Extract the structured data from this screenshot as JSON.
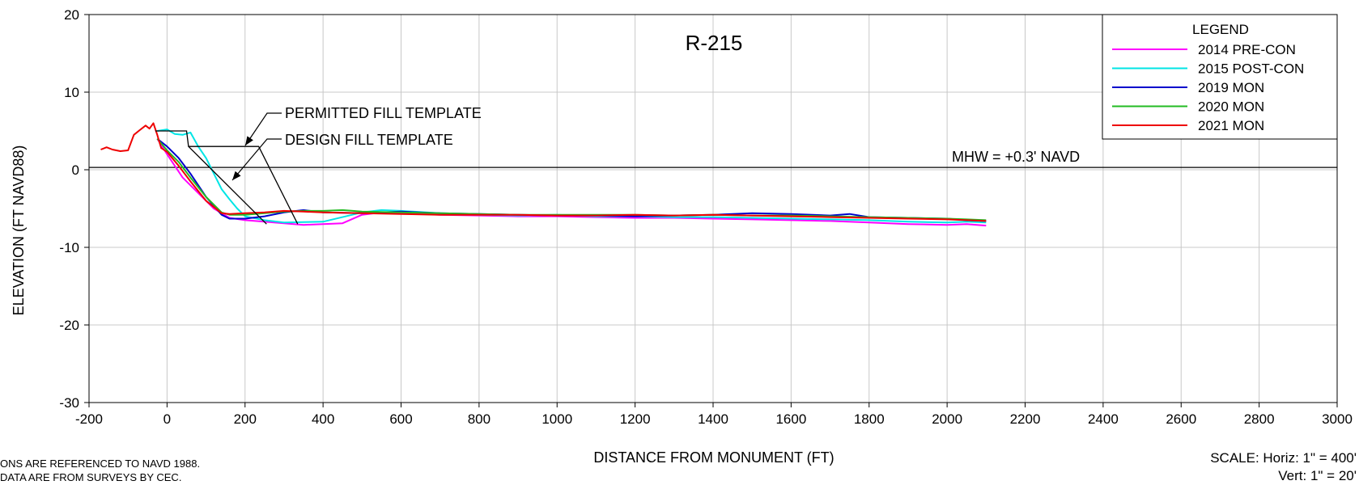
{
  "chart_data": {
    "type": "line",
    "title": "R-215",
    "xlabel": "DISTANCE FROM MONUMENT (FT)",
    "ylabel": "ELEVATION (FT NAVD88)",
    "xlim": [
      -200,
      3000
    ],
    "ylim": [
      -30,
      20
    ],
    "x_ticks": [
      -200,
      0,
      200,
      400,
      600,
      800,
      1000,
      1200,
      1400,
      1600,
      1800,
      2000,
      2200,
      2400,
      2600,
      2800,
      3000
    ],
    "y_ticks": [
      -30,
      -20,
      -10,
      0,
      10,
      20
    ],
    "grid": true,
    "legend_title": "LEGEND",
    "legend_position": "top-right",
    "mhw": {
      "value": 0.3,
      "label": "MHW = +0.3' NAVD"
    },
    "annotations": {
      "permitted": "PERMITTED FILL TEMPLATE",
      "design": "DESIGN FILL TEMPLATE"
    },
    "templates": {
      "permitted": {
        "x": [
          -30,
          50,
          55,
          235,
          335
        ],
        "y": [
          5,
          5,
          3,
          3,
          -7
        ]
      },
      "design": {
        "x": [
          55,
          255
        ],
        "y": [
          3,
          -7
        ]
      }
    },
    "series": [
      {
        "name": "2014 PRE-CON",
        "color": "#ff00ff",
        "x": [
          -25,
          0,
          40,
          80,
          120,
          160,
          200,
          250,
          300,
          350,
          400,
          450,
          500,
          550,
          600,
          700,
          800,
          900,
          1000,
          1100,
          1200,
          1300,
          1400,
          1500,
          1600,
          1700,
          1800,
          1900,
          2000,
          2050,
          2100
        ],
        "y": [
          4,
          2,
          -1,
          -3,
          -5,
          -6.2,
          -6.5,
          -6.7,
          -6.9,
          -7.1,
          -7.0,
          -6.9,
          -5.8,
          -5.5,
          -5.6,
          -5.8,
          -5.9,
          -6.0,
          -6.0,
          -6.1,
          -6.2,
          -6.2,
          -6.3,
          -6.4,
          -6.5,
          -6.6,
          -6.8,
          -7.0,
          -7.1,
          -7.0,
          -7.2
        ]
      },
      {
        "name": "2015 POST-CON",
        "color": "#00e5e5",
        "x": [
          -25,
          0,
          20,
          40,
          60,
          80,
          100,
          120,
          140,
          160,
          180,
          200,
          250,
          300,
          400,
          500,
          550,
          600,
          700,
          800,
          900,
          1000,
          1100,
          1200,
          1300,
          1400,
          1500,
          1600,
          1700,
          1800,
          1900,
          2000,
          2050,
          2100
        ],
        "y": [
          5,
          5.2,
          4.6,
          4.5,
          4.8,
          3.0,
          1.5,
          -0.5,
          -2.5,
          -3.8,
          -5.0,
          -6.0,
          -6.5,
          -6.8,
          -6.7,
          -5.5,
          -5.2,
          -5.3,
          -5.6,
          -5.8,
          -5.9,
          -5.8,
          -6.0,
          -6.0,
          -6.1,
          -6.1,
          -6.2,
          -6.3,
          -6.4,
          -6.5,
          -6.7,
          -6.8,
          -6.7,
          -6.8
        ]
      },
      {
        "name": "2019 MON",
        "color": "#0000cc",
        "x": [
          -25,
          0,
          30,
          60,
          100,
          140,
          160,
          200,
          250,
          300,
          350,
          400,
          500,
          600,
          700,
          800,
          900,
          1000,
          1100,
          1200,
          1300,
          1400,
          1500,
          1600,
          1700,
          1750,
          1800,
          1900,
          2000,
          2050,
          2100
        ],
        "y": [
          4,
          3,
          1.5,
          -0.5,
          -3.5,
          -5.8,
          -6.3,
          -6.3,
          -6.0,
          -5.5,
          -5.2,
          -5.5,
          -5.6,
          -5.4,
          -5.6,
          -5.7,
          -5.8,
          -5.9,
          -5.9,
          -6.0,
          -5.9,
          -5.8,
          -5.6,
          -5.7,
          -5.9,
          -5.7,
          -6.1,
          -6.2,
          -6.3,
          -6.5,
          -6.6
        ]
      },
      {
        "name": "2020 MON",
        "color": "#22bb22",
        "x": [
          -25,
          0,
          30,
          60,
          100,
          140,
          160,
          200,
          250,
          300,
          350,
          400,
          450,
          500,
          600,
          700,
          800,
          900,
          1000,
          1100,
          1200,
          1300,
          1400,
          1500,
          1600,
          1700,
          1800,
          1900,
          2000,
          2050,
          2100
        ],
        "y": [
          4,
          2.5,
          1,
          -1,
          -3.5,
          -5.5,
          -5.8,
          -5.8,
          -5.6,
          -5.4,
          -5.3,
          -5.3,
          -5.2,
          -5.4,
          -5.5,
          -5.6,
          -5.7,
          -5.8,
          -5.8,
          -5.8,
          -5.8,
          -5.9,
          -5.8,
          -5.9,
          -5.9,
          -6.0,
          -6.1,
          -6.2,
          -6.3,
          -6.4,
          -6.5
        ]
      },
      {
        "name": "2021 MON",
        "color": "#ee0000",
        "x": [
          -170,
          -155,
          -140,
          -120,
          -100,
          -85,
          -70,
          -55,
          -45,
          -35,
          -25,
          -15,
          0,
          30,
          60,
          100,
          140,
          160,
          200,
          250,
          300,
          350,
          400,
          500,
          600,
          700,
          800,
          900,
          1000,
          1100,
          1200,
          1300,
          1400,
          1500,
          1600,
          1700,
          1800,
          1900,
          2000,
          2050,
          2100
        ],
        "y": [
          2.6,
          2.9,
          2.6,
          2.4,
          2.5,
          4.5,
          5.1,
          5.7,
          5.3,
          6.0,
          4.5,
          2.8,
          2.3,
          0.5,
          -1.5,
          -4.0,
          -5.6,
          -5.7,
          -5.6,
          -5.5,
          -5.3,
          -5.4,
          -5.5,
          -5.6,
          -5.7,
          -5.8,
          -5.8,
          -5.8,
          -5.9,
          -5.9,
          -5.8,
          -5.9,
          -5.8,
          -5.9,
          -6.0,
          -6.1,
          -6.2,
          -6.3,
          -6.4,
          -6.5,
          -6.6
        ]
      }
    ]
  },
  "notes": {
    "line1": "ONS ARE REFERENCED TO NAVD 1988.",
    "line2": "DATA ARE FROM SURVEYS BY CEC."
  },
  "scale": {
    "horiz": "SCALE:  Horiz: 1\" = 400'",
    "vert": "Vert:  1\" = 20'"
  }
}
